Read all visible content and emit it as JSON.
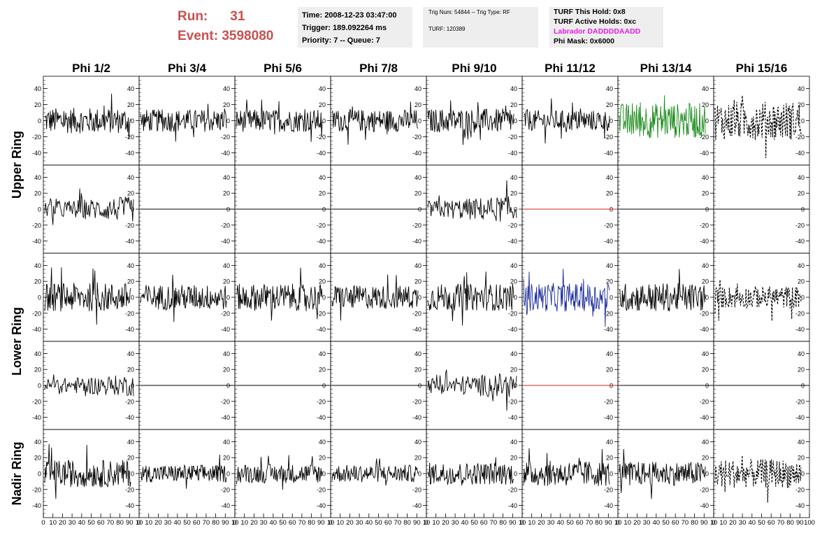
{
  "header": {
    "run_label": "Run:",
    "run_value": "31",
    "event_label": "Event:",
    "event_value": "3598080"
  },
  "time_box": {
    "time": "Time: 2008-12-23 03:47:00",
    "trigger": "Trigger: 189.092264 ms",
    "priority": "Priority: 7 -- Queue: 7"
  },
  "trig_box": {
    "trig_num": "Trig Num: 54844 -- Trig Type: RF",
    "turf": "TURF: 120389"
  },
  "turf_box": {
    "this_hold": "TURF This Hold: 0x8",
    "active_holds": "TURF Active Holds: 0xc",
    "labrador": "Labrador DADDDDAADD",
    "phi_mask": "Phi Mask: 0x6000"
  },
  "colors": {
    "header_red": "#c8504f",
    "magenta": "#e619e6",
    "trace_default": "#000000",
    "trace_green": "#1a8a1a",
    "trace_blue": "#1a2a9a",
    "trace_flat_red": "#d02020"
  },
  "chart_data": {
    "type": "line",
    "columns": [
      "Phi 1/2",
      "Phi 3/4",
      "Phi 5/6",
      "Phi 7/8",
      "Phi 9/10",
      "Phi 11/12",
      "Phi 13/14",
      "Phi 15/16"
    ],
    "ring_labels": [
      "Upper Ring",
      "Lower Ring",
      "Nadir Ring"
    ],
    "row_rings": [
      0,
      0,
      1,
      1,
      2
    ],
    "ylim": [
      -50,
      50
    ],
    "yticks": [
      -40,
      -20,
      0,
      20,
      40
    ],
    "xlim": [
      0,
      100
    ],
    "xtick_labels": [
      "0",
      "10",
      "20",
      "30",
      "40",
      "50",
      "60",
      "70",
      "80",
      "90",
      "10"
    ],
    "xtick_labels_last": [
      "0",
      "10",
      "20",
      "30",
      "40",
      "50",
      "60",
      "70",
      "80",
      "90",
      "100"
    ],
    "grid": false,
    "series_style": [
      [
        "noise",
        "noise",
        "noise",
        "noise",
        "noise",
        "noise",
        "noise-green",
        "dashed"
      ],
      [
        "half",
        "flat",
        "flat",
        "flat",
        "half",
        "flat-red",
        "flat",
        "flat"
      ],
      [
        "noise",
        "noise",
        "noise",
        "noise",
        "noise",
        "noise-blue",
        "noise",
        "dashed"
      ],
      [
        "half",
        "flat",
        "flat",
        "flat",
        "half",
        "flat-red",
        "flat",
        "flat"
      ],
      [
        "noise",
        "noise",
        "noise",
        "noise",
        "noise",
        "noise",
        "noise",
        "dashed"
      ]
    ],
    "series_amplitude": [
      [
        16,
        14,
        14,
        14,
        15,
        13,
        22,
        24
      ],
      [
        13,
        0,
        0,
        0,
        14,
        0,
        0,
        0
      ],
      [
        18,
        16,
        17,
        15,
        17,
        18,
        18,
        14
      ],
      [
        11,
        0,
        0,
        0,
        13,
        0,
        0,
        0
      ],
      [
        17,
        11,
        12,
        11,
        14,
        16,
        15,
        18
      ]
    ]
  }
}
